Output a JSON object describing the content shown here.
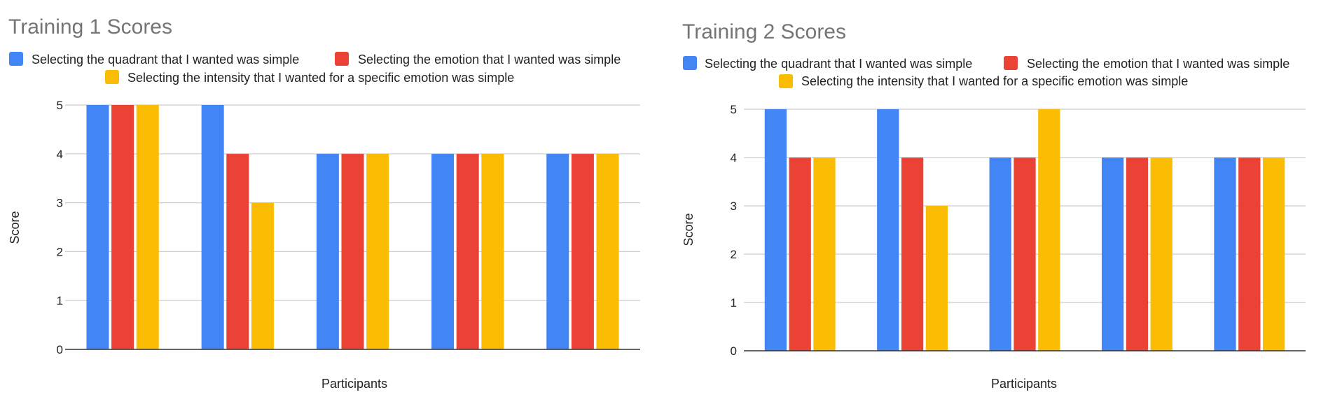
{
  "chart_data": [
    {
      "type": "bar",
      "title": "Training 1 Scores",
      "xlabel": "Participants",
      "ylabel": "Score",
      "ylim": [
        0,
        5
      ],
      "yticks": [
        0,
        1,
        2,
        3,
        4,
        5
      ],
      "grid": true,
      "legend_position": "top",
      "categories": [
        "",
        "",
        "",
        "",
        ""
      ],
      "series": [
        {
          "name": "Selecting the quadrant that I wanted was simple",
          "color": "#4285F4",
          "values": [
            5,
            5,
            4,
            4,
            4
          ]
        },
        {
          "name": "Selecting the emotion that I wanted was simple",
          "color": "#EA4335",
          "values": [
            5,
            4,
            4,
            4,
            4
          ]
        },
        {
          "name": "Selecting the intensity that I wanted for a specific emotion was simple",
          "color": "#FBBC04",
          "values": [
            5,
            3,
            4,
            4,
            4
          ]
        }
      ]
    },
    {
      "type": "bar",
      "title": "Training 2 Scores",
      "xlabel": "Participants",
      "ylabel": "Score",
      "ylim": [
        0,
        5
      ],
      "yticks": [
        0,
        1,
        2,
        3,
        4,
        5
      ],
      "grid": true,
      "legend_position": "top",
      "categories": [
        "",
        "",
        "",
        "",
        ""
      ],
      "series": [
        {
          "name": "Selecting the quadrant that I wanted was simple",
          "color": "#4285F4",
          "values": [
            5,
            5,
            4,
            4,
            4
          ]
        },
        {
          "name": "Selecting the emotion that I wanted was simple",
          "color": "#EA4335",
          "values": [
            4,
            4,
            4,
            4,
            4
          ]
        },
        {
          "name": "Selecting the intensity that I wanted for a specific emotion was simple",
          "color": "#FBBC04",
          "values": [
            4,
            3,
            5,
            4,
            4
          ]
        }
      ]
    }
  ]
}
